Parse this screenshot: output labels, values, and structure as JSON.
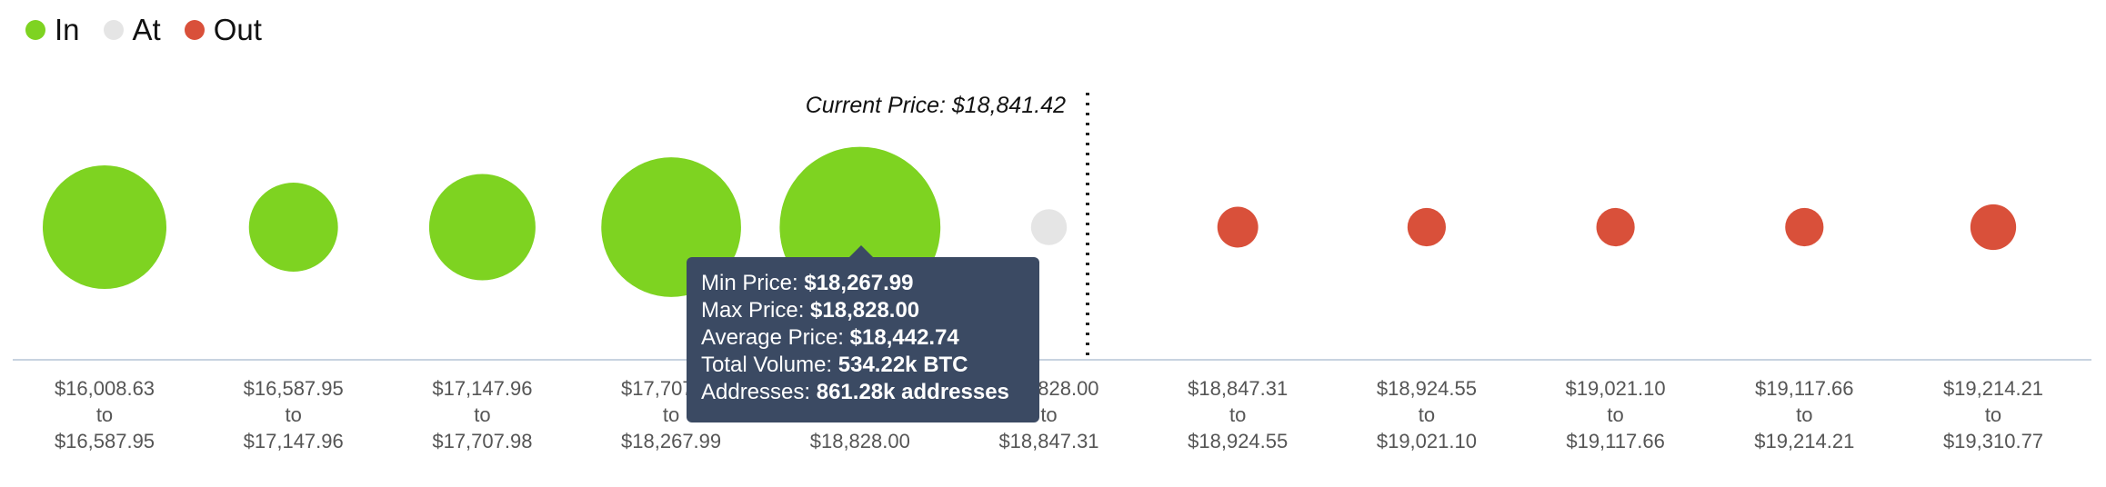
{
  "legend": [
    {
      "label": "In",
      "color": "#7ed321"
    },
    {
      "label": "At",
      "color": "#e5e5e5"
    },
    {
      "label": "Out",
      "color": "#d9503a"
    }
  ],
  "chart_data": {
    "type": "bubble",
    "current_price_label": "Current Price: $18,841.42",
    "current_price": 18841.42,
    "categories": [
      {
        "from": "$16,008.63",
        "to": "$16,587.95",
        "status": "In",
        "size": 1.0
      },
      {
        "from": "$16,587.95",
        "to": "$17,147.96",
        "status": "In",
        "size": 0.72
      },
      {
        "from": "$17,147.96",
        "to": "$17,707.98",
        "status": "In",
        "size": 0.86
      },
      {
        "from": "$17,707.98",
        "to": "$18,267.99",
        "status": "In",
        "size": 1.13
      },
      {
        "from": "$18,267.99",
        "to": "$18,828.00",
        "status": "In",
        "size": 1.3
      },
      {
        "from": "$18,828.00",
        "to": "$18,847.31",
        "status": "At",
        "size": 0.29
      },
      {
        "from": "$18,847.31",
        "to": "$18,924.55",
        "status": "Out",
        "size": 0.33
      },
      {
        "from": "$18,924.55",
        "to": "$19,021.10",
        "status": "Out",
        "size": 0.31
      },
      {
        "from": "$19,021.10",
        "to": "$19,117.66",
        "status": "Out",
        "size": 0.31
      },
      {
        "from": "$19,117.66",
        "to": "$19,214.21",
        "status": "Out",
        "size": 0.31
      },
      {
        "from": "$19,214.21",
        "to": "$19,310.77",
        "status": "Out",
        "size": 0.37
      }
    ],
    "to_word": "to"
  },
  "tooltip": {
    "min_label": "Min Price:",
    "min_value": "$18,267.99",
    "max_label": "Max Price:",
    "max_value": "$18,828.00",
    "avg_label": "Average Price:",
    "avg_value": "$18,442.74",
    "vol_label": "Total Volume:",
    "vol_value": "534.22k BTC",
    "addr_label": "Addresses:",
    "addr_value": "861.28k addresses"
  }
}
